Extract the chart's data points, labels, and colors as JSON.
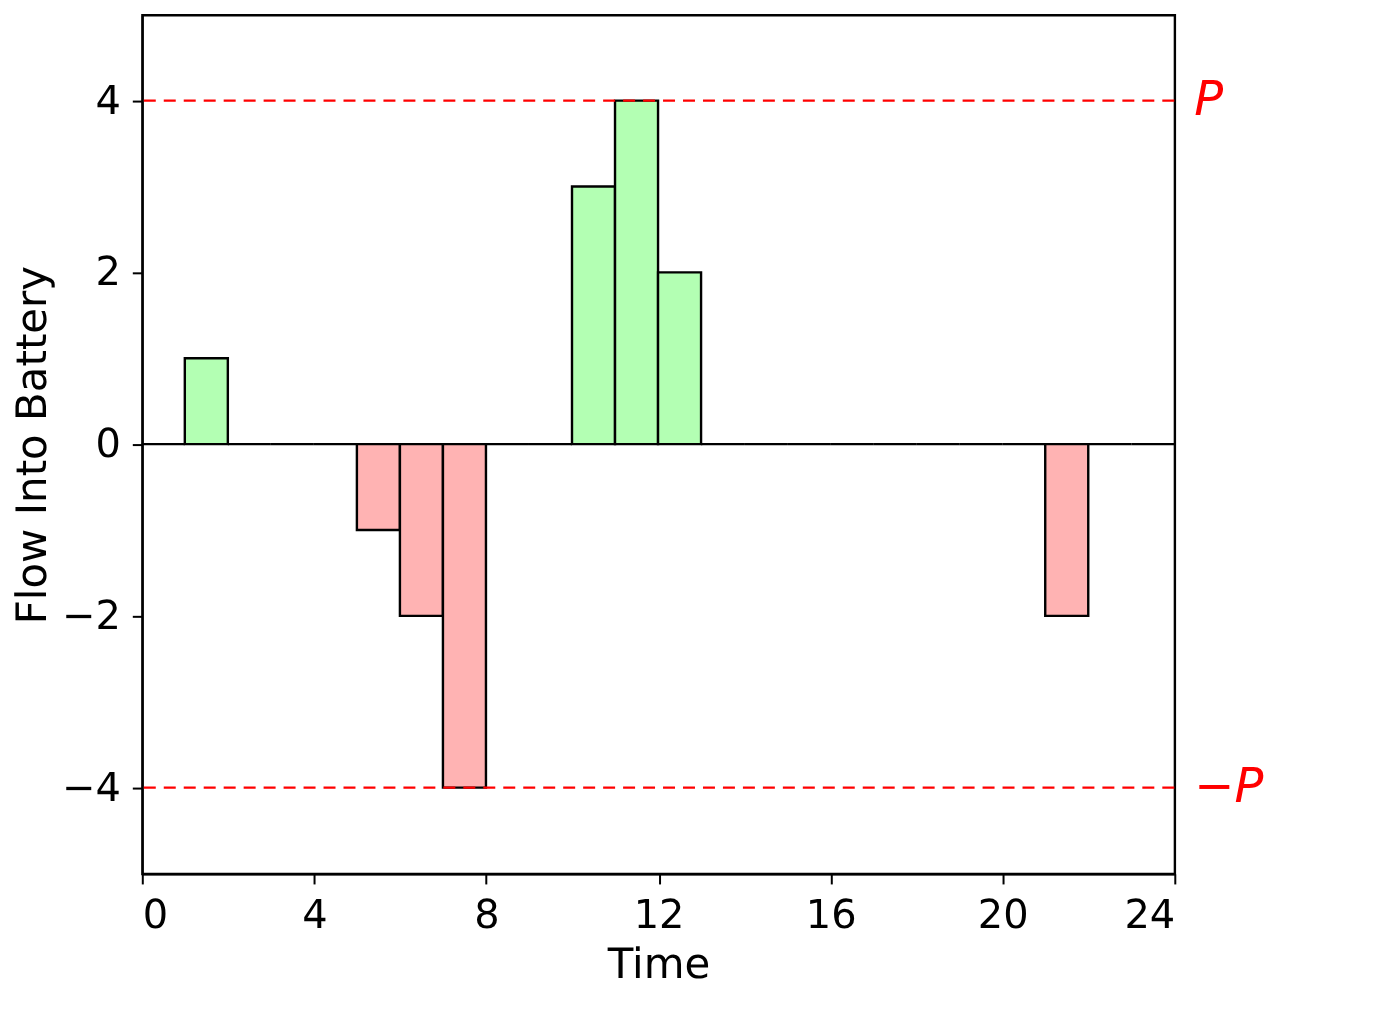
{
  "chart_data": {
    "type": "histogram",
    "xlabel": "Time",
    "ylabel": "Flow Into Battery",
    "bins": [
      0,
      1,
      2,
      3,
      4,
      5,
      6,
      7,
      8,
      9,
      10,
      11,
      12,
      13,
      14,
      15,
      16,
      17,
      18,
      19,
      20,
      21,
      22,
      23,
      24
    ],
    "values": [
      0,
      1,
      0,
      0,
      0,
      -1,
      -2,
      -4,
      0,
      0,
      3,
      4,
      2,
      0,
      0,
      0,
      0,
      0,
      0,
      0,
      0,
      -2,
      0,
      0
    ],
    "colors": [
      "#000000",
      "#b3ffb3",
      "#000000",
      "#000000",
      "#000000",
      "#ffb3b3",
      "#ffb3b3",
      "#ffb3b3",
      "#000000",
      "#000000",
      "#b3ffb3",
      "#b3ffb3",
      "#b3ffb3",
      "#000000",
      "#000000",
      "#000000",
      "#000000",
      "#000000",
      "#000000",
      "#000000",
      "#000000",
      "#ffb3b3",
      "#000000",
      "#000000"
    ],
    "xlim": [
      0,
      24
    ],
    "xticks": [
      0,
      4,
      8,
      12,
      16,
      20,
      24
    ],
    "ylim": [
      -5,
      5
    ],
    "yticks": [
      {
        "value": -4,
        "label": "−4"
      },
      {
        "value": -2,
        "label": "−2"
      },
      0,
      2,
      4
    ],
    "ref_lines": [
      {
        "axis": "y",
        "value": 4,
        "label": "P",
        "color": "#ff0000",
        "line_style": "dashed"
      },
      {
        "axis": "y",
        "value": -4,
        "label": "−P",
        "color": "#ff0000",
        "line_style": "dashed"
      }
    ],
    "grid": false
  }
}
